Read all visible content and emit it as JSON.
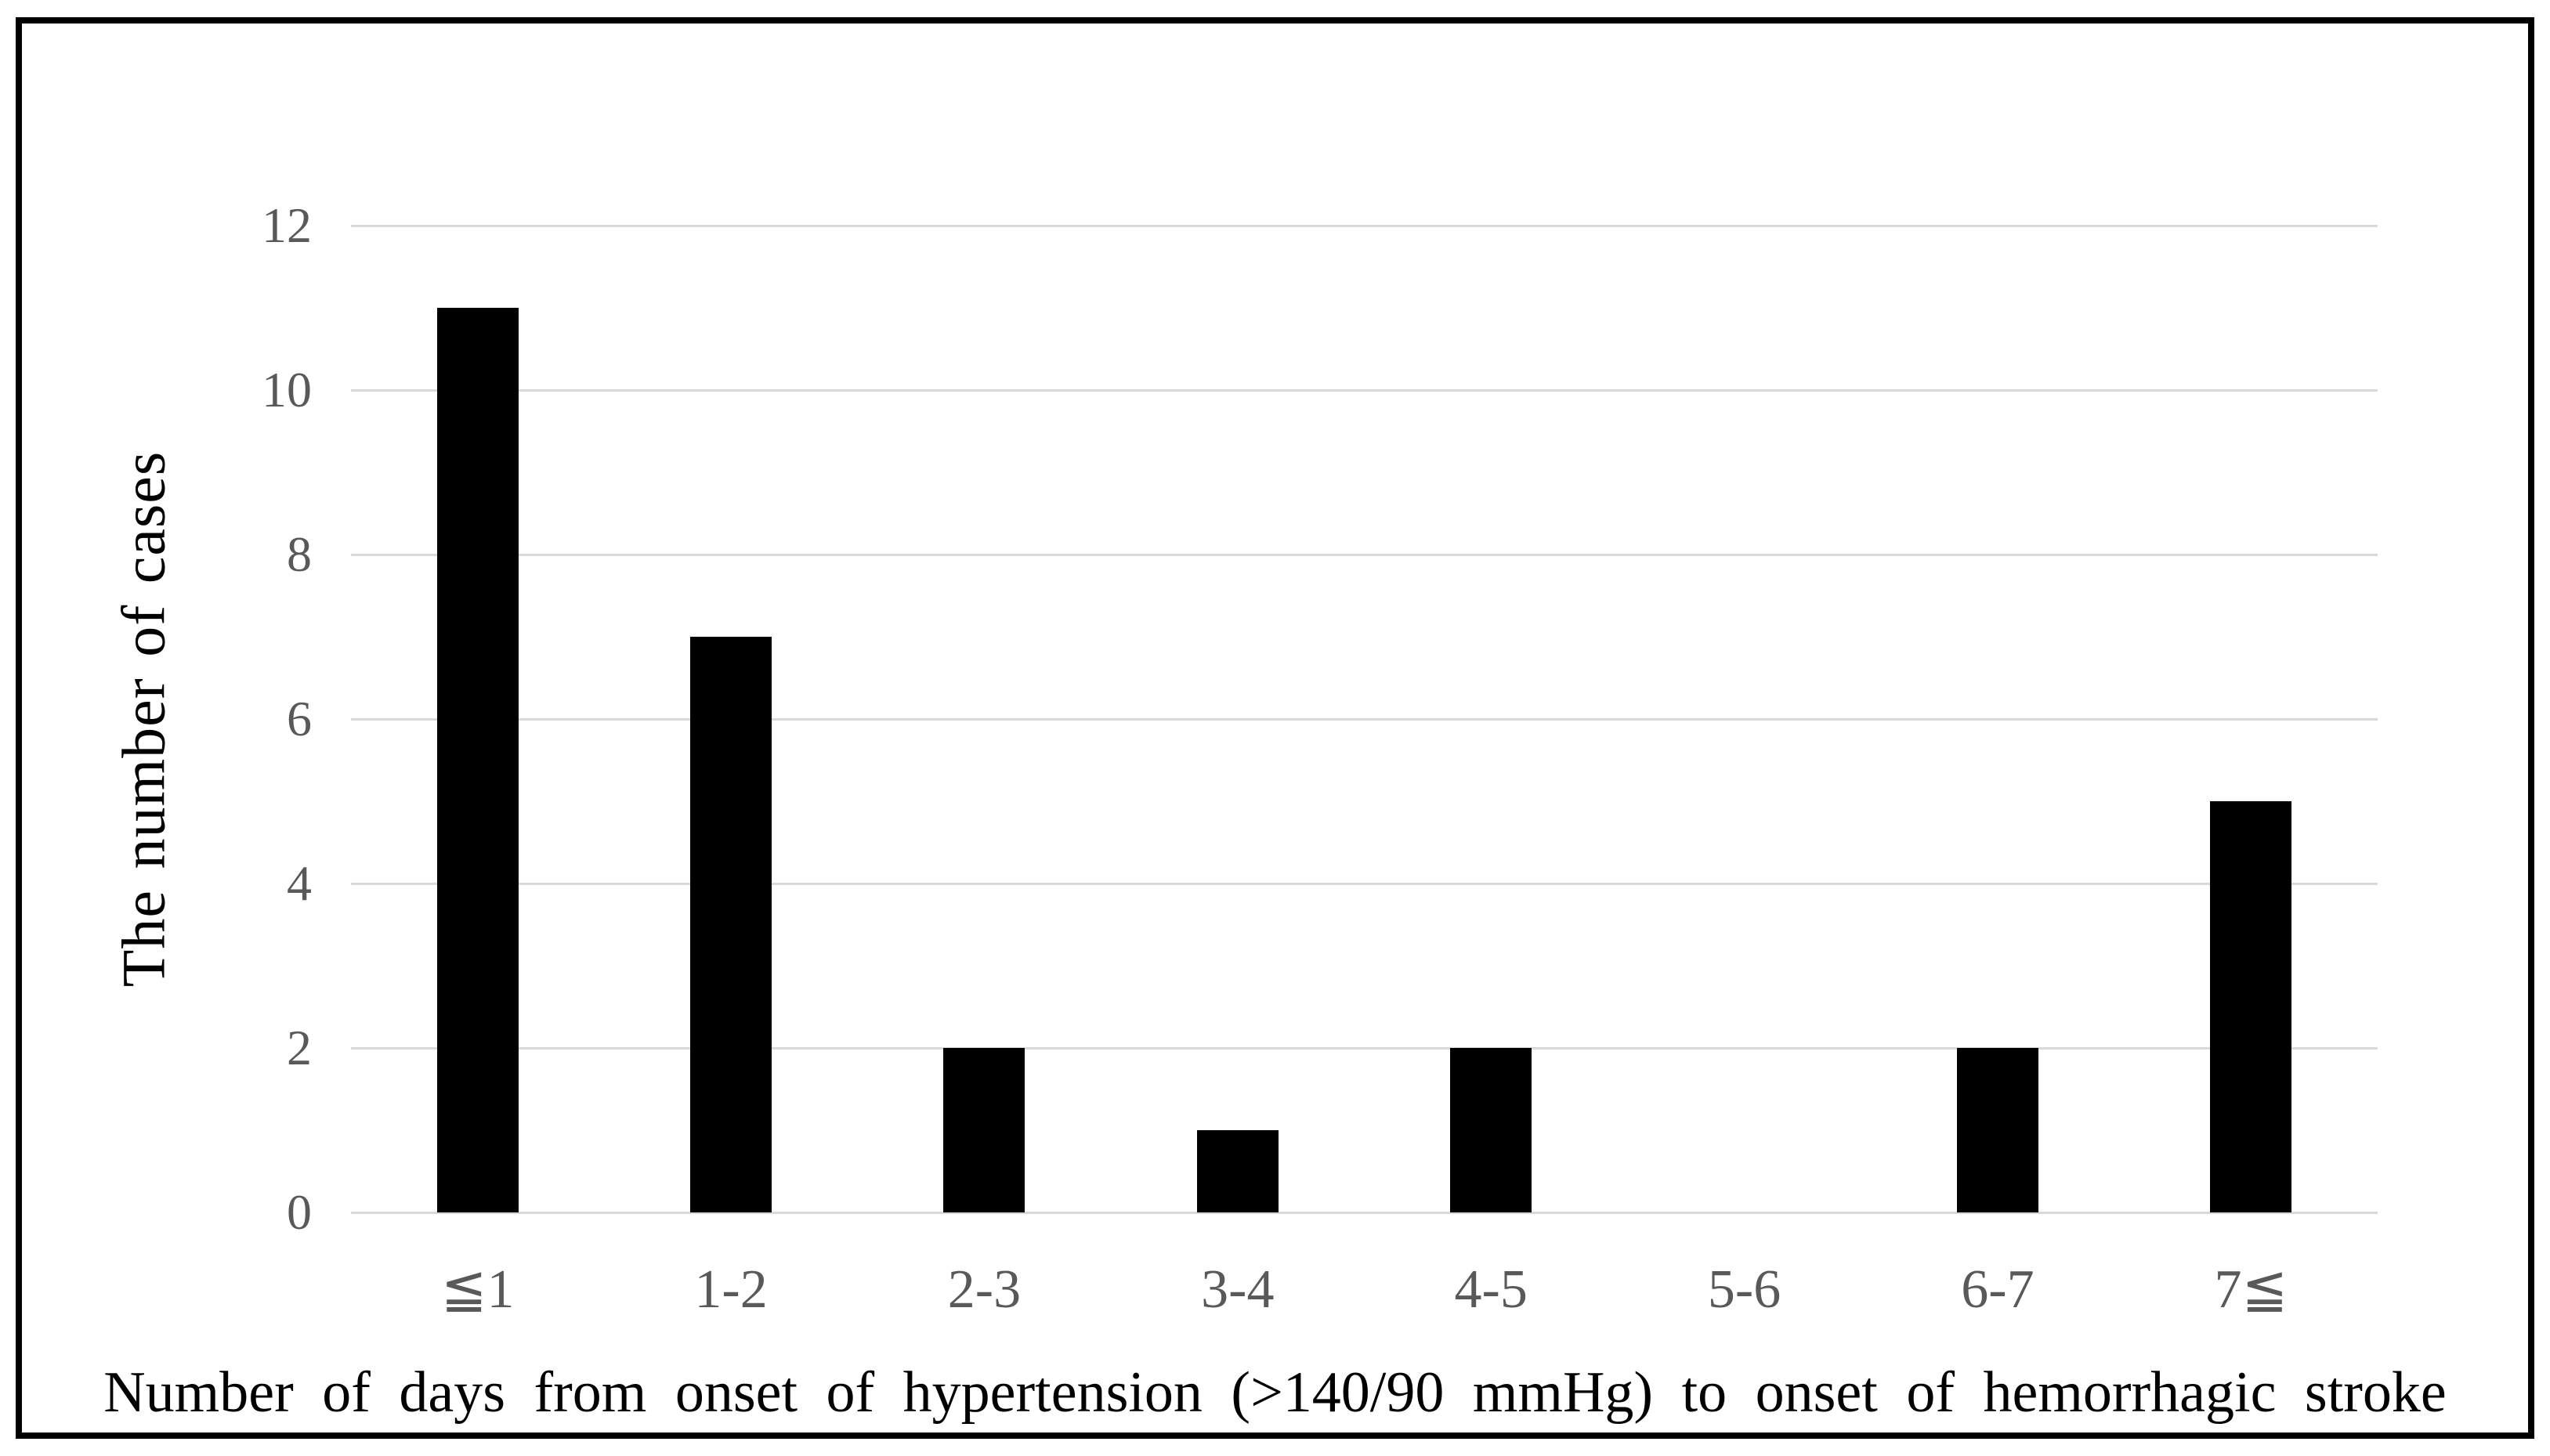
{
  "figure": {
    "background_color": "#ffffff",
    "frame_border_color": "#000000"
  },
  "chart_data": {
    "type": "bar",
    "categories": [
      "≦1",
      "1-2",
      "2-3",
      "3-4",
      "4-5",
      "5-6",
      "6-7",
      "7≦"
    ],
    "values": [
      11,
      7,
      2,
      1,
      2,
      0,
      2,
      5
    ],
    "title": "",
    "xlabel": "Number of days from onset of hypertension (>140/90 mmHg) to onset of hemorrhagic stroke",
    "ylabel": "The number of cases",
    "ylim": [
      0,
      12
    ],
    "yticks": [
      0,
      2,
      4,
      6,
      8,
      10,
      12
    ],
    "grid": true,
    "legend": false,
    "bar_color": "#000000",
    "tick_label_color": "#595959",
    "gridline_color": "#d9d9d9",
    "axis_title_color": "#000000"
  }
}
